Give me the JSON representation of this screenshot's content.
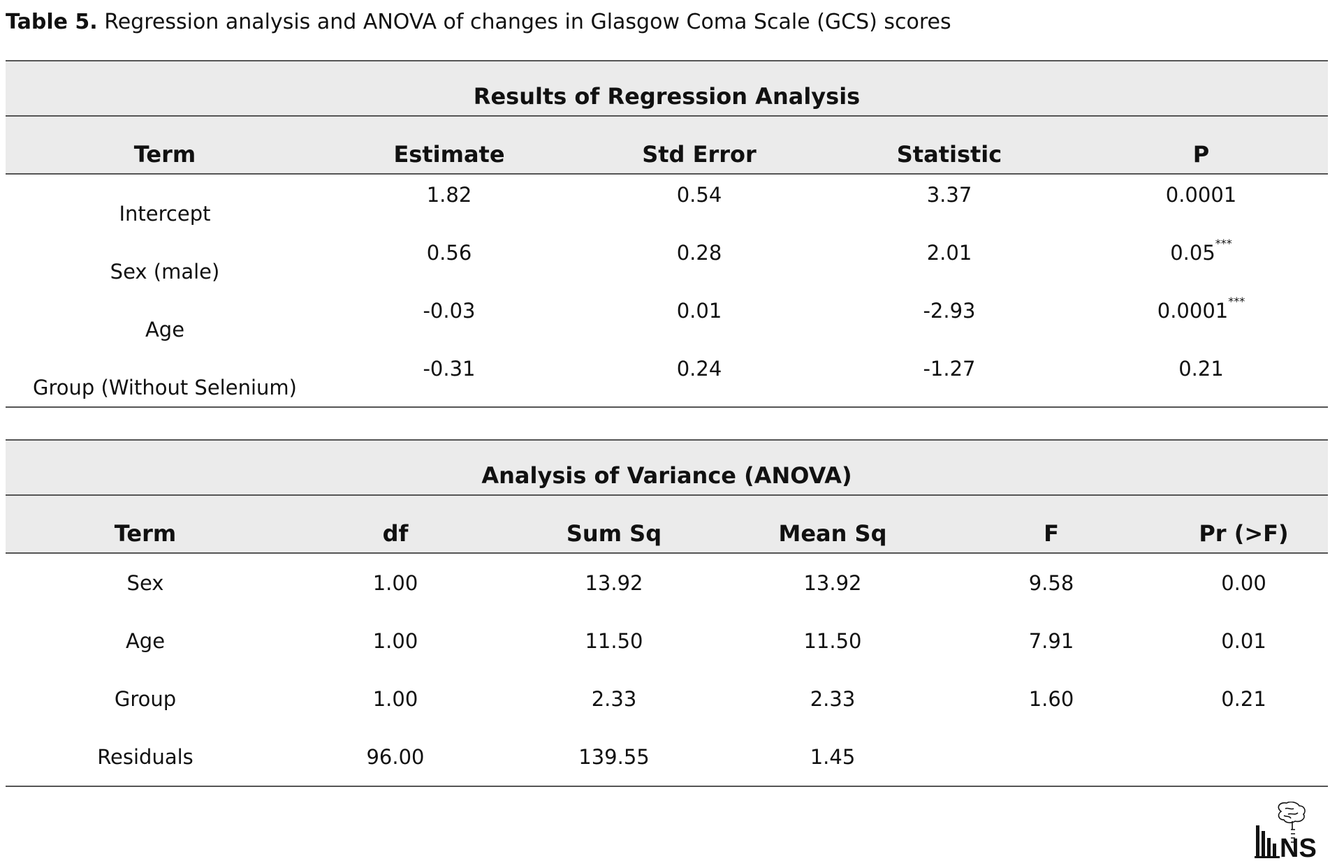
{
  "caption": {
    "label": "Table 5.",
    "text": "Regression analysis and ANOVA of changes in Glasgow Coma Scale (GCS) scores"
  },
  "regression": {
    "title": "Results of Regression Analysis",
    "headers": [
      "Term",
      "Estimate",
      "Std Error",
      "Statistic",
      "P"
    ],
    "rows": [
      {
        "term": "Intercept",
        "estimate": "1.82",
        "std_error": "0.54",
        "statistic": "3.37",
        "p": "0.0001",
        "p_mark": ""
      },
      {
        "term": "Sex (male)",
        "estimate": "0.56",
        "std_error": "0.28",
        "statistic": "2.01",
        "p": "0.05",
        "p_mark": "***"
      },
      {
        "term": "Age",
        "estimate": "-0.03",
        "std_error": "0.01",
        "statistic": "-2.93",
        "p": "0.0001",
        "p_mark": "***"
      },
      {
        "term": "Group (Without Selenium)",
        "estimate": "-0.31",
        "std_error": "0.24",
        "statistic": "-1.27",
        "p": "0.21",
        "p_mark": ""
      }
    ]
  },
  "anova": {
    "title": "Analysis of Variance (ANOVA)",
    "headers": [
      "Term",
      "df",
      "Sum Sq",
      "Mean Sq",
      "F",
      "Pr (>F)"
    ],
    "rows": [
      {
        "term": "Sex",
        "df": "1.00",
        "sum_sq": "13.92",
        "mean_sq": "13.92",
        "f": "9.58",
        "pr": "0.00"
      },
      {
        "term": "Age",
        "df": "1.00",
        "sum_sq": "11.50",
        "mean_sq": "11.50",
        "f": "7.91",
        "pr": "0.01"
      },
      {
        "term": "Group",
        "df": "1.00",
        "sum_sq": "2.33",
        "mean_sq": "2.33",
        "f": "1.60",
        "pr": "0.21"
      },
      {
        "term": "Residuals",
        "df": "96.00",
        "sum_sq": "139.55",
        "mean_sq": "1.45",
        "f": "",
        "pr": ""
      }
    ]
  },
  "logo": {
    "text": "IJNS",
    "icon": "brain-spine-logo-icon"
  }
}
